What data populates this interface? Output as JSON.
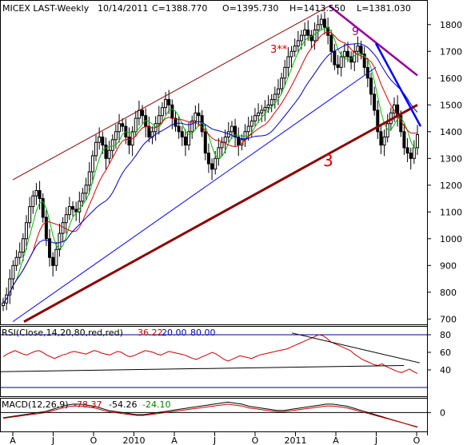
{
  "header": {
    "title": "MICEX LAST-Weekly",
    "date": "10/14/2011",
    "close": "C=1388.770",
    "open": "O=1395.730",
    "high": "H=1413.550",
    "low": "L=1381.030"
  },
  "annotations": {
    "channel_label": "3**",
    "trendline_label": "3",
    "wave_label": "9"
  },
  "rsi": {
    "label": "RSI(Close,14,20,80,red,red)",
    "value": "36.22",
    "lower": "20.00",
    "upper": "80.00",
    "ticks": [
      "80",
      "60",
      "40"
    ]
  },
  "macd": {
    "label": "MACD(12,26,9)",
    "v1": "-78.37",
    "v2": "-54.26",
    "v3": "-24.10",
    "ticks": [
      "0"
    ]
  },
  "colors": {
    "candle": "#000000",
    "ma_fast": "#00c000",
    "ma_mid": "#e00000",
    "ma_slow": "#0000c0",
    "channel": "#8b0000",
    "trend_blue": "#0000ff",
    "trend_purple": "#990099",
    "rsi_line": "#cc0000",
    "guide": "#00008b"
  },
  "chart_data": {
    "type": "candlestick",
    "price_ticks": [
      700,
      800,
      900,
      1000,
      1100,
      1200,
      1300,
      1400,
      1500,
      1600,
      1700,
      1800
    ],
    "ylim": [
      680,
      1880
    ],
    "x_labels": [
      "A",
      "J",
      "O",
      "2010",
      "A",
      "J",
      "O",
      "2011",
      "A",
      "J",
      "O"
    ],
    "close_series": [
      760,
      790,
      850,
      900,
      930,
      950,
      1000,
      1060,
      1120,
      1160,
      1180,
      1150,
      1080,
      1000,
      930,
      900,
      960,
      1020,
      1060,
      1090,
      1120,
      1110,
      1100,
      1140,
      1170,
      1200,
      1250,
      1310,
      1360,
      1380,
      1350,
      1300,
      1330,
      1370,
      1400,
      1430,
      1420,
      1380,
      1350,
      1400,
      1450,
      1480,
      1460,
      1420,
      1380,
      1400,
      1430,
      1460,
      1490,
      1520,
      1500,
      1450,
      1420,
      1400,
      1380,
      1350,
      1400,
      1440,
      1470,
      1460,
      1400,
      1320,
      1280,
      1260,
      1300,
      1340,
      1360,
      1380,
      1400,
      1420,
      1380,
      1350,
      1370,
      1400,
      1420,
      1440,
      1460,
      1470,
      1480,
      1490,
      1500,
      1520,
      1540,
      1560,
      1600,
      1640,
      1680,
      1700,
      1720,
      1740,
      1760,
      1780,
      1760,
      1740,
      1780,
      1800,
      1820,
      1790,
      1760,
      1700,
      1650,
      1640,
      1680,
      1700,
      1680,
      1660,
      1700,
      1720,
      1690,
      1640,
      1600,
      1540,
      1480,
      1400,
      1350,
      1380,
      1430,
      1470,
      1500,
      1460,
      1400,
      1340,
      1320,
      1300,
      1340,
      1389
    ],
    "rsi_series": [
      55,
      58,
      60,
      62,
      60,
      58,
      57,
      59,
      61,
      62,
      60,
      57,
      55,
      53,
      55,
      57,
      58,
      60,
      61,
      60,
      59,
      58,
      60,
      62,
      61,
      59,
      58,
      57,
      59,
      61,
      60,
      57,
      55,
      56,
      58,
      60,
      62,
      61,
      60,
      58,
      57,
      59,
      61,
      60,
      59,
      58,
      57,
      55,
      53,
      52,
      54,
      56,
      58,
      60,
      58,
      55,
      52,
      50,
      52,
      54,
      56,
      55,
      54,
      53,
      55,
      57,
      58,
      59,
      60,
      61,
      62,
      63,
      64,
      66,
      68,
      70,
      72,
      74,
      76,
      78,
      80,
      79,
      76,
      72,
      70,
      68,
      66,
      64,
      62,
      58,
      55,
      52,
      50,
      48,
      46,
      45,
      47,
      44,
      42,
      40,
      38,
      37,
      39,
      41,
      38,
      36
    ],
    "macd_series": [
      -5,
      -4,
      -3,
      -2,
      -1,
      0,
      1,
      3,
      5,
      7,
      8,
      8,
      7,
      6,
      4,
      2,
      1,
      0,
      -1,
      -2,
      -2,
      -1,
      0,
      1,
      2,
      3,
      4,
      5,
      6,
      7,
      8,
      9,
      10,
      9,
      8,
      6,
      5,
      4,
      3,
      2,
      2,
      3,
      4,
      5,
      6,
      7,
      8,
      8,
      7,
      6,
      4,
      2,
      0,
      -2,
      -4,
      -6,
      -8,
      -10,
      -12,
      -14
    ]
  }
}
